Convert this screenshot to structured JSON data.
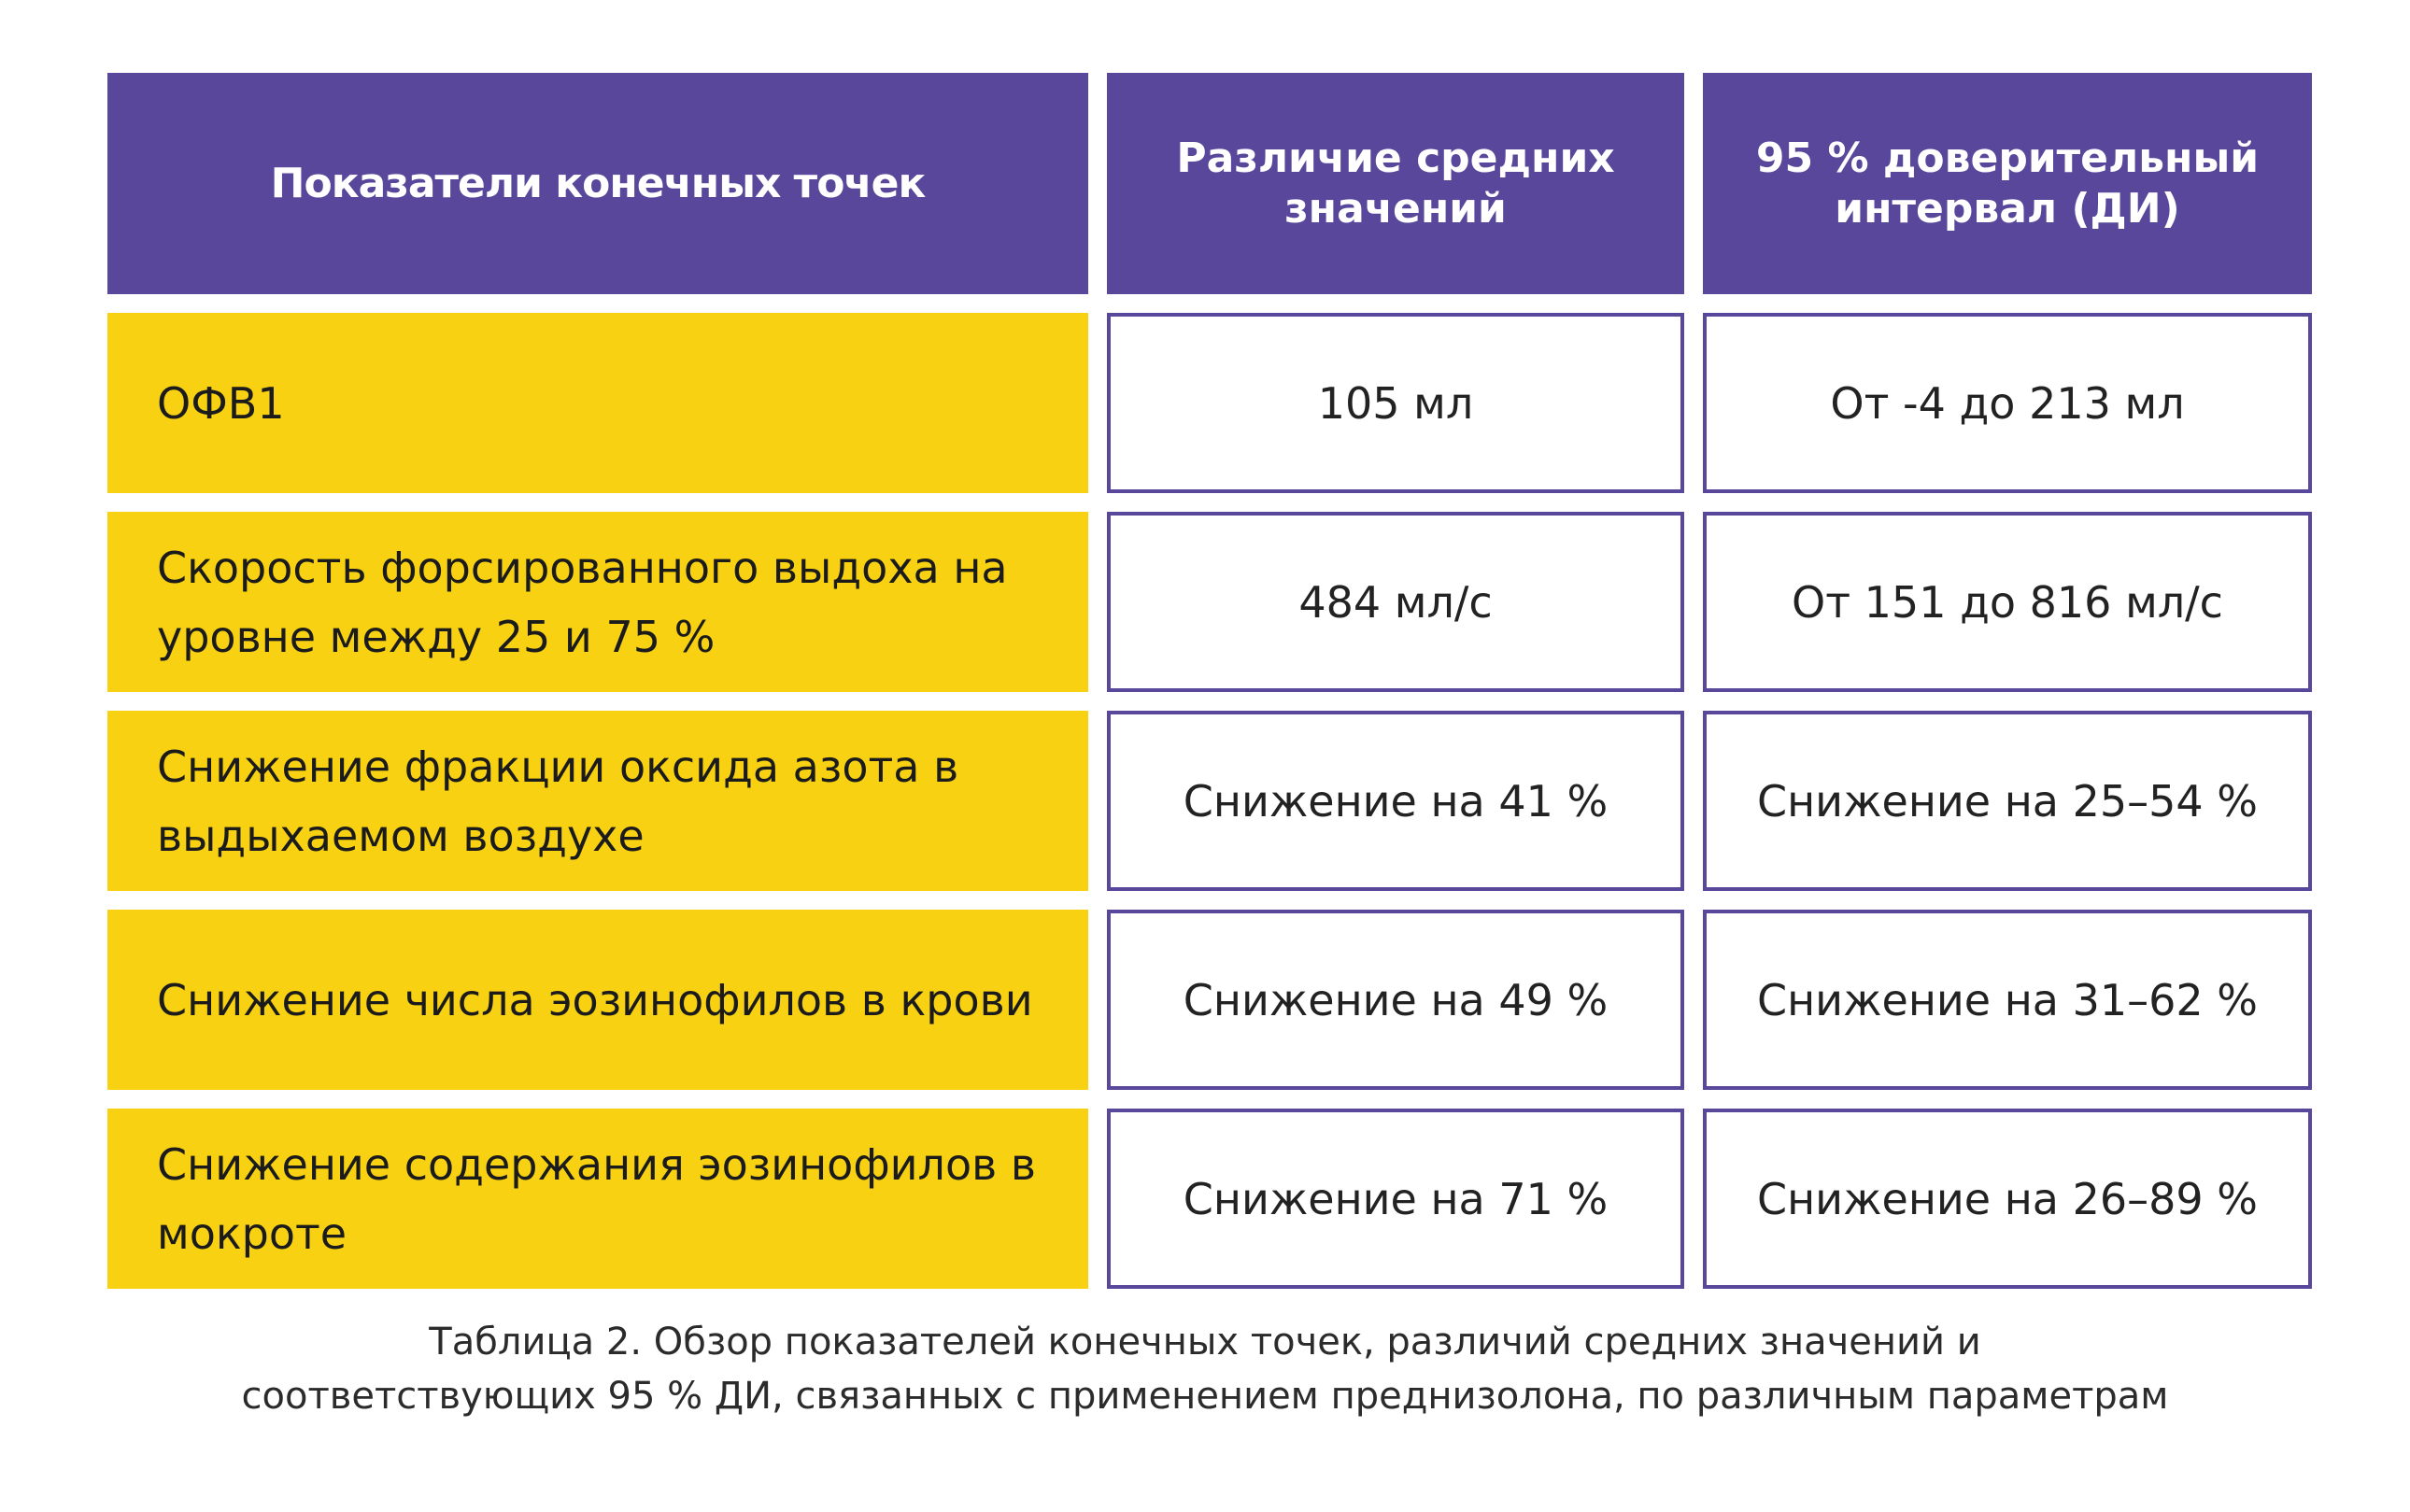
{
  "table": {
    "headers": [
      "Показатели конечных точек",
      "Различие средних значений",
      "95 % доверительный интервал (ДИ)"
    ],
    "rows": [
      {
        "endpoint": "ОФВ1",
        "mean_difference": "105 мл",
        "ci": "От -4 до 213 мл"
      },
      {
        "endpoint": "Скорость форсированного выдоха на уровне между 25 и 75 %",
        "mean_difference": "484 мл/с",
        "ci": "От 151 до 816 мл/с"
      },
      {
        "endpoint": "Снижение фракции оксида азота в выдыхаемом воздухе",
        "mean_difference": "Снижение на 41 %",
        "ci": "Снижение на 25–54 %"
      },
      {
        "endpoint": "Снижение числа эозинофилов в крови",
        "mean_difference": "Снижение на 49 %",
        "ci": "Снижение на 31–62 %"
      },
      {
        "endpoint": "Снижение содержания эозинофилов в мокроте",
        "mean_difference": "Снижение на 71 %",
        "ci": "Снижение на 26–89 %"
      }
    ]
  },
  "caption": {
    "line1": "Таблица 2. Обзор показателей конечных точек, различий средних значений и",
    "line2": "соответствующих 95 % ДИ, связанных с применением преднизолона, по различным параметрам"
  },
  "colors": {
    "header_bg": "#58479a",
    "endpoint_bg": "#f7d112",
    "border": "#58479a"
  }
}
